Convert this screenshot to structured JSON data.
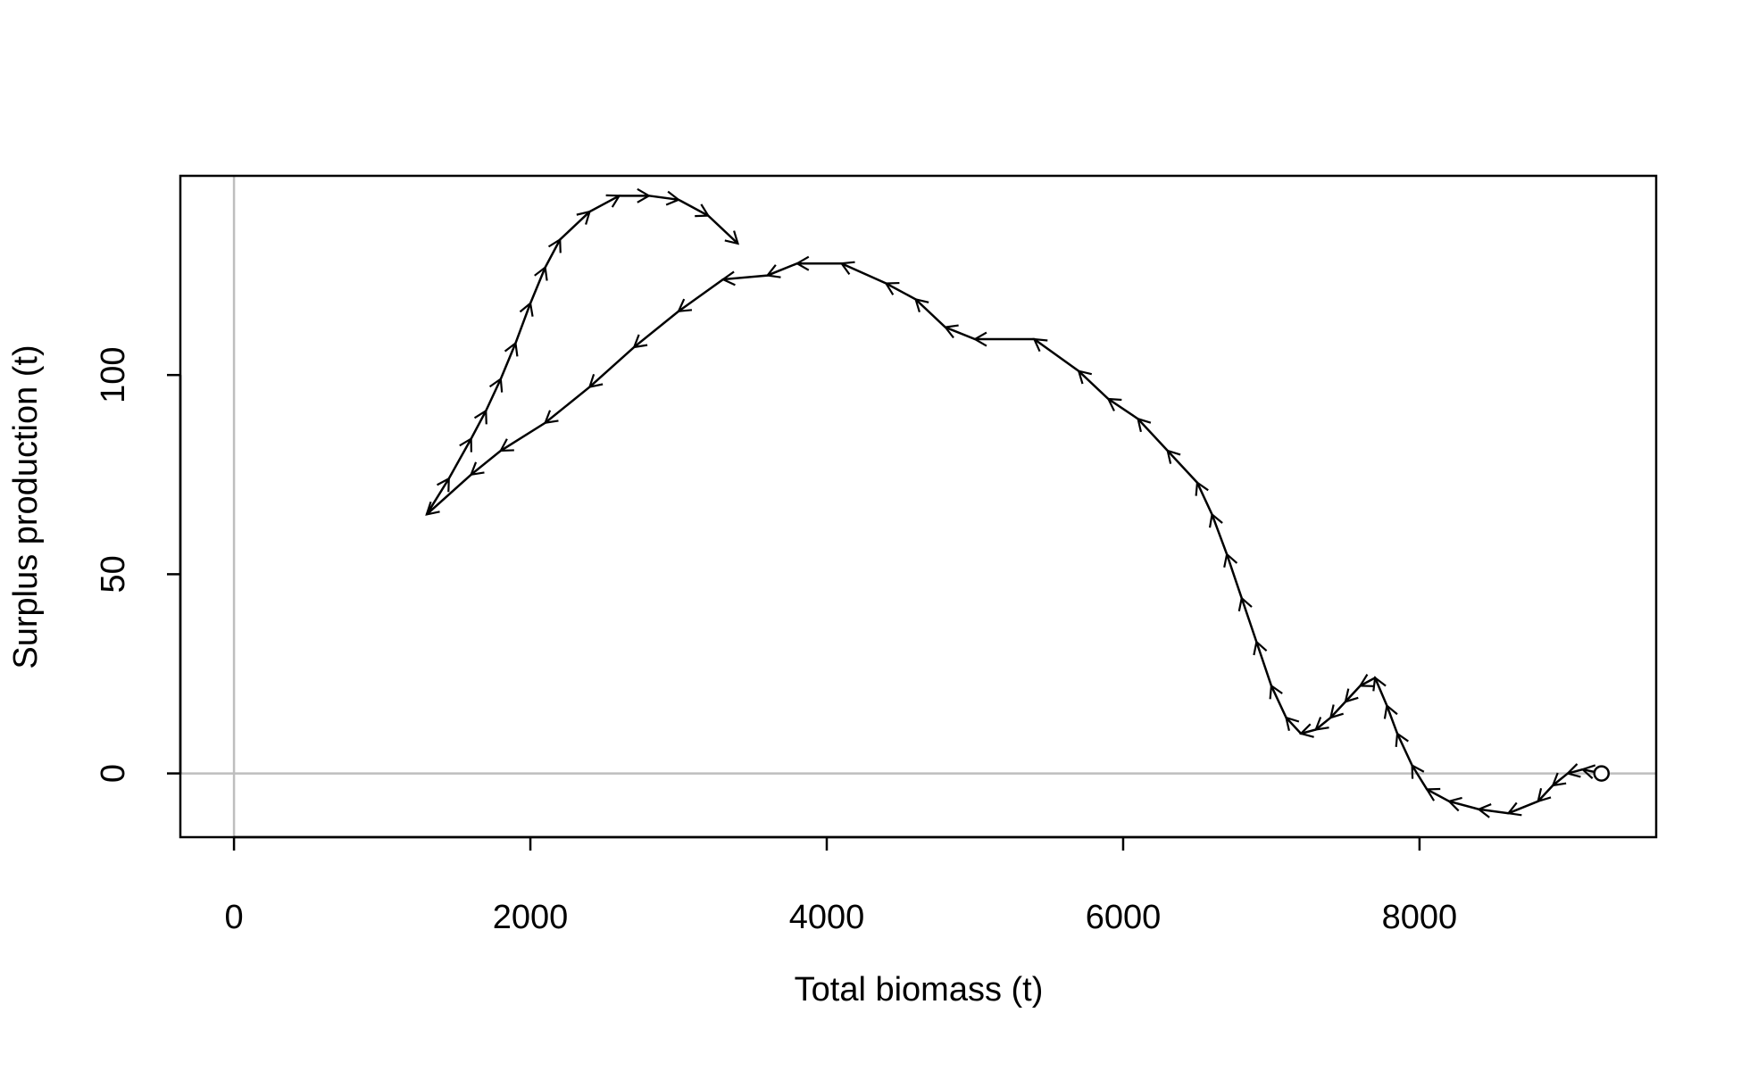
{
  "chart_data": {
    "type": "line",
    "xlabel": "Total biomass (t)",
    "ylabel": "Surplus production (t)",
    "x": [
      9228,
      9100,
      9000,
      8900,
      8800,
      8600,
      8400,
      8200,
      8050,
      7950,
      7850,
      7780,
      7700,
      7600,
      7500,
      7400,
      7300,
      7200,
      7100,
      7000,
      6900,
      6800,
      6700,
      6600,
      6500,
      6300,
      6100,
      5900,
      5700,
      5400,
      5000,
      4800,
      4600,
      4400,
      4100,
      3800,
      3600,
      3300,
      3000,
      2700,
      2400,
      2100,
      1800,
      1600,
      1300,
      1450,
      1600,
      1700,
      1800,
      1900,
      2000,
      2100,
      2200,
      2400,
      2600,
      2800,
      3000,
      3200,
      3400
    ],
    "y": [
      0,
      1,
      0,
      -3,
      -7,
      -10,
      -9,
      -7,
      -4,
      2,
      10,
      17,
      24,
      22,
      18,
      14,
      11,
      10,
      14,
      22,
      33,
      44,
      55,
      65,
      73,
      81,
      89,
      94,
      101,
      109,
      109,
      112,
      119,
      123,
      128,
      128,
      125,
      124,
      116,
      107,
      97,
      88,
      81,
      75,
      65,
      74,
      84,
      91,
      99,
      108,
      118,
      127,
      134,
      141,
      145,
      145,
      144,
      140,
      133
    ],
    "color": "#000000",
    "xlim": [
      -362,
      9597
    ],
    "ylim": [
      -16,
      150
    ],
    "xticks": [
      0,
      2000,
      4000,
      6000,
      8000
    ],
    "yticks": [
      0,
      50,
      100
    ],
    "hlines": [
      0
    ],
    "vlines": [
      0
    ],
    "reference_color": "#bebebe",
    "arrows": true,
    "start_marker": true
  }
}
